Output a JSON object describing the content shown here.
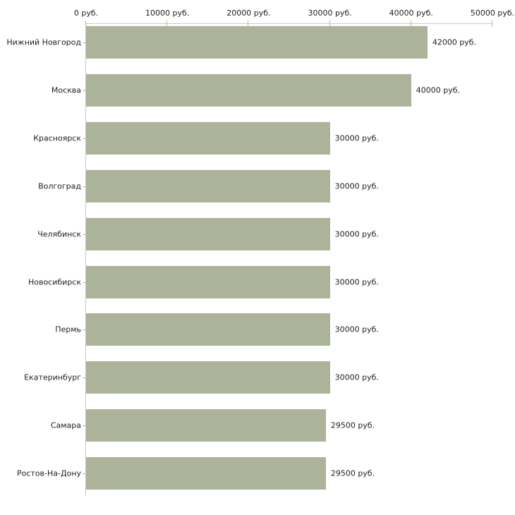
{
  "chart_data": {
    "type": "bar",
    "orientation": "horizontal",
    "title": "",
    "xlabel": "",
    "ylabel": "",
    "unit": "руб.",
    "xlim": [
      0,
      50000
    ],
    "grid": false,
    "legend": false,
    "x_tick_values": [
      0,
      10000,
      20000,
      30000,
      40000,
      50000
    ],
    "x_tick_labels": [
      "0 руб.",
      "10000 руб.",
      "20000 руб.",
      "30000 руб.",
      "40000 руб.",
      "50000 руб."
    ],
    "categories": [
      "Нижний Новгород",
      "Москва",
      "Красноярск",
      "Волгоград",
      "Челябинск",
      "Новосибирск",
      "Пермь",
      "Екатеринбург",
      "Самара",
      "Ростов-На-Дону"
    ],
    "values": [
      42000,
      40000,
      30000,
      30000,
      30000,
      30000,
      30000,
      30000,
      29500,
      29500
    ],
    "value_labels": [
      "42000 руб.",
      "40000 руб.",
      "30000 руб.",
      "30000 руб.",
      "30000 руб.",
      "30000 руб.",
      "30000 руб.",
      "30000 руб.",
      "29500 руб.",
      "29500 руб."
    ],
    "colors": {
      "bar": "#abb39b",
      "axis": "#c9c9c9",
      "tick": "#b7b88f",
      "text": "#222222",
      "background": "#ffffff"
    }
  }
}
